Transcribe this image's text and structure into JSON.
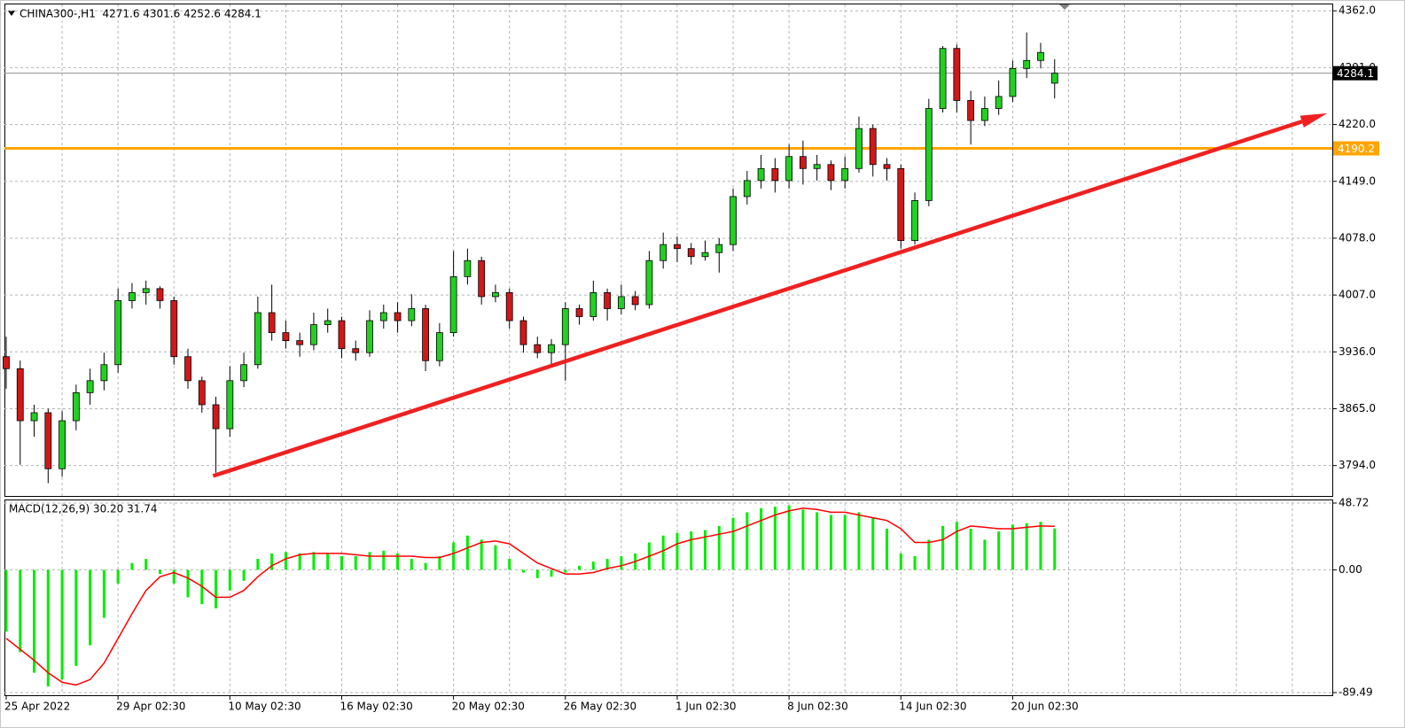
{
  "chart_data": [
    {
      "type": "candlestick",
      "title": "CHINA300-,H1  4271.6 4301.6 4252.6 4284.1",
      "categories": [
        "25 Apr 2022",
        null,
        null,
        null,
        null,
        null,
        null,
        null,
        "29 Apr 02:30",
        null,
        null,
        null,
        null,
        null,
        null,
        null,
        "10 May 02:30",
        null,
        null,
        null,
        null,
        null,
        null,
        null,
        "16 May 02:30",
        null,
        null,
        null,
        null,
        null,
        null,
        null,
        "20 May 02:30",
        null,
        null,
        null,
        null,
        null,
        null,
        null,
        "26 May 02:30",
        null,
        null,
        null,
        null,
        null,
        null,
        null,
        "1 Jun 02:30",
        null,
        null,
        null,
        null,
        null,
        null,
        null,
        "8 Jun 02:30",
        null,
        null,
        null,
        null,
        null,
        null,
        null,
        "14 Jun 02:30",
        null,
        null,
        null,
        null,
        null,
        null,
        null,
        "20 Jun 02:30",
        null,
        null,
        null
      ],
      "open": [
        3930,
        3915,
        3850,
        3860,
        3790,
        3850,
        3885,
        3900,
        3920,
        4000,
        4010,
        4015,
        4000,
        3930,
        3900,
        3870,
        3840,
        3900,
        3920,
        3985,
        3960,
        3950,
        3945,
        3970,
        3975,
        3940,
        3935,
        3975,
        3985,
        3975,
        3990,
        3925,
        3960,
        4030,
        4050,
        4005,
        4010,
        3975,
        3945,
        3935,
        3945,
        3990,
        3980,
        4010,
        3990,
        4005,
        3995,
        4050,
        4070,
        4065,
        4055,
        4060,
        4070,
        4130,
        4150,
        4165,
        4150,
        4180,
        4165,
        4170,
        4150,
        4165,
        4215,
        4170,
        4165,
        4075,
        4125,
        4240,
        4315,
        4250,
        4225,
        4240,
        4255,
        4290,
        4300,
        4271.6
      ],
      "high": [
        3955,
        3925,
        3870,
        3865,
        3862,
        3895,
        3915,
        3935,
        4015,
        4022,
        4025,
        4018,
        4005,
        3940,
        3905,
        3880,
        3918,
        3935,
        4005,
        4020,
        3975,
        3960,
        3985,
        3990,
        3980,
        3950,
        3988,
        3995,
        3998,
        4008,
        3995,
        3972,
        4062,
        4065,
        4055,
        4020,
        4015,
        3980,
        3955,
        3952,
        3998,
        3995,
        4025,
        4015,
        4020,
        4012,
        4062,
        4085,
        4080,
        4072,
        4075,
        4078,
        4140,
        4162,
        4182,
        4178,
        4195,
        4200,
        4182,
        4175,
        4180,
        4230,
        4220,
        4178,
        4170,
        4135,
        4252,
        4318,
        4320,
        4262,
        4255,
        4275,
        4300,
        4335,
        4322,
        4301.6
      ],
      "low": [
        3890,
        3795,
        3830,
        3772,
        3780,
        3838,
        3870,
        3888,
        3910,
        3990,
        3995,
        3990,
        3920,
        3890,
        3860,
        3785,
        3830,
        3892,
        3915,
        3950,
        3940,
        3930,
        3938,
        3960,
        3928,
        3925,
        3930,
        3965,
        3960,
        3968,
        3912,
        3918,
        3955,
        4020,
        3995,
        3998,
        3965,
        3935,
        3928,
        3920,
        3900,
        3970,
        3975,
        3975,
        3983,
        3988,
        3990,
        4040,
        4048,
        4045,
        4050,
        4035,
        4062,
        4120,
        4140,
        4135,
        4140,
        4145,
        4150,
        4138,
        4140,
        4160,
        4155,
        4150,
        4065,
        4070,
        4118,
        4235,
        4235,
        4195,
        4218,
        4232,
        4248,
        4278,
        4290,
        4252.6
      ],
      "close": [
        3915,
        3850,
        3860,
        3790,
        3850,
        3885,
        3900,
        3920,
        4000,
        4010,
        4015,
        4000,
        3930,
        3900,
        3870,
        3840,
        3900,
        3920,
        3985,
        3960,
        3950,
        3945,
        3970,
        3975,
        3940,
        3935,
        3975,
        3985,
        3975,
        3990,
        3925,
        3960,
        4030,
        4050,
        4005,
        4010,
        3975,
        3945,
        3935,
        3945,
        3990,
        3980,
        4010,
        3990,
        4005,
        3995,
        4050,
        4070,
        4065,
        4055,
        4060,
        4070,
        4130,
        4150,
        4165,
        4150,
        4180,
        4165,
        4170,
        4150,
        4165,
        4215,
        4170,
        4165,
        4075,
        4125,
        4240,
        4315,
        4250,
        4225,
        4240,
        4255,
        4290,
        4300,
        4310,
        4284.1
      ],
      "up_color": "#22d022",
      "down_color": "#d01818",
      "ylim": [
        3756,
        4370
      ],
      "yticks": [
        {
          "value": 4362,
          "label": "4362.0"
        },
        {
          "value": 4291,
          "label": "4291.0"
        },
        {
          "value": 4220,
          "label": "4220.0"
        },
        {
          "value": 4149,
          "label": "4149.0"
        },
        {
          "value": 4078,
          "label": "4078.0"
        },
        {
          "value": 4007,
          "label": "4007.0"
        },
        {
          "value": 3936,
          "label": "3936.0"
        },
        {
          "value": 3865,
          "label": "3865.0"
        },
        {
          "value": 3794,
          "label": "3794.0"
        }
      ],
      "grid": true,
      "hlines": [
        {
          "value": 4190.2,
          "color": "#ffa500"
        }
      ],
      "trendline": {
        "start": [
          14.8,
          3781
        ],
        "end": [
          94.5,
          4234
        ],
        "color": "#f02020"
      }
    },
    {
      "type": "macd",
      "title": "MACD(12,26,9) 30.20 31.74",
      "series": [
        {
          "color": "#00ee00",
          "values": [
            -45,
            -60,
            -75,
            -85,
            -80,
            -70,
            -55,
            -35,
            -10,
            5,
            8,
            -3,
            -10,
            -20,
            -25,
            -28,
            -15,
            -8,
            8,
            12,
            13,
            12,
            13,
            12,
            10,
            10,
            13,
            14,
            12,
            8,
            5,
            10,
            20,
            25,
            22,
            18,
            8,
            -2,
            -6,
            -5,
            -2,
            3,
            6,
            8,
            10,
            12,
            20,
            25,
            27,
            28,
            29,
            32,
            38,
            42,
            45,
            46,
            47,
            44,
            42,
            40,
            40,
            42,
            38,
            30,
            12,
            10,
            22,
            32,
            35,
            30,
            22,
            28,
            33,
            34,
            35,
            30.2
          ]
        },
        {
          "color": "#ff0000",
          "values": [
            -50,
            -58,
            -66,
            -75,
            -82,
            -84,
            -80,
            -68,
            -50,
            -32,
            -15,
            -5,
            -2,
            -6,
            -12,
            -20,
            -20,
            -15,
            -5,
            3,
            8,
            11,
            12,
            12,
            12,
            11,
            10,
            10,
            10,
            10,
            9,
            9,
            12,
            16,
            20,
            21,
            19,
            12,
            5,
            1,
            -3,
            -3,
            -2,
            1,
            3,
            6,
            10,
            14,
            19,
            22,
            24,
            26,
            28,
            32,
            36,
            40,
            43,
            45,
            44,
            42,
            42,
            40,
            38,
            36,
            30,
            20,
            20,
            22,
            28,
            32,
            31,
            30,
            30,
            31,
            32,
            31.74
          ]
        }
      ],
      "ylim": [
        -89.49,
        48.72
      ],
      "yticks": [
        48.72,
        {
          "value": 0,
          "label": "0.00"
        },
        -89.49
      ]
    }
  ]
}
